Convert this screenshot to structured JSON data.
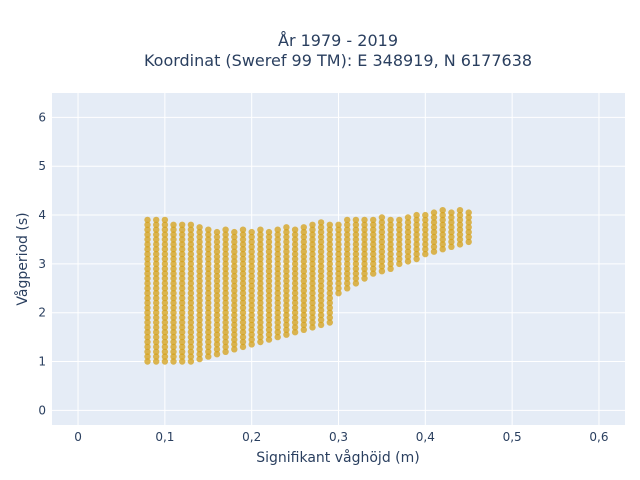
{
  "chart_data": {
    "type": "scatter",
    "title_line1": "År 1979 - 2019",
    "title_line2": "Koordinat (Sweref 99 TM): E 348919, N 6177638",
    "xlabel": "Signifikant våghöjd (m)",
    "ylabel": "Vågperiod (s)",
    "xlim": [
      -0.03,
      0.63
    ],
    "ylim": [
      -0.3,
      6.5
    ],
    "x_ticks": [
      0,
      0.1,
      0.2,
      0.3,
      0.4,
      0.5,
      0.6
    ],
    "x_tick_labels": [
      "0",
      "0,1",
      "0,2",
      "0,3",
      "0,4",
      "0,5",
      "0,6"
    ],
    "y_ticks": [
      0,
      1,
      2,
      3,
      4,
      5,
      6
    ],
    "y_tick_labels": [
      "0",
      "1",
      "2",
      "3",
      "4",
      "5",
      "6"
    ],
    "grid": true,
    "background_color": "#e5ecf6",
    "marker_color": "#d4a017",
    "series": [
      {
        "columns": [
          {
            "x": 0.08,
            "ymin": 1.0,
            "ymax": 3.92
          },
          {
            "x": 0.09,
            "ymin": 1.0,
            "ymax": 3.9
          },
          {
            "x": 0.1,
            "ymin": 1.0,
            "ymax": 3.9
          },
          {
            "x": 0.11,
            "ymin": 1.0,
            "ymax": 3.88
          },
          {
            "x": 0.12,
            "ymin": 1.0,
            "ymax": 3.85
          },
          {
            "x": 0.13,
            "ymin": 1.0,
            "ymax": 3.8
          },
          {
            "x": 0.14,
            "ymin": 1.05,
            "ymax": 3.75
          },
          {
            "x": 0.15,
            "ymin": 1.1,
            "ymax": 3.75
          },
          {
            "x": 0.16,
            "ymin": 1.15,
            "ymax": 3.72
          },
          {
            "x": 0.17,
            "ymin": 1.2,
            "ymax": 3.72
          },
          {
            "x": 0.18,
            "ymin": 1.25,
            "ymax": 3.7
          },
          {
            "x": 0.19,
            "ymin": 1.3,
            "ymax": 3.7
          },
          {
            "x": 0.2,
            "ymin": 1.35,
            "ymax": 3.7
          },
          {
            "x": 0.21,
            "ymin": 1.4,
            "ymax": 3.7
          },
          {
            "x": 0.22,
            "ymin": 1.45,
            "ymax": 3.72
          },
          {
            "x": 0.23,
            "ymin": 1.5,
            "ymax": 3.75
          },
          {
            "x": 0.24,
            "ymin": 1.55,
            "ymax": 3.75
          },
          {
            "x": 0.25,
            "ymin": 1.6,
            "ymax": 3.78
          },
          {
            "x": 0.26,
            "ymin": 1.65,
            "ymax": 3.8
          },
          {
            "x": 0.27,
            "ymin": 1.7,
            "ymax": 3.82
          },
          {
            "x": 0.28,
            "ymin": 1.75,
            "ymax": 3.85
          },
          {
            "x": 0.29,
            "ymin": 1.8,
            "ymax": 3.85
          },
          {
            "x": 0.3,
            "ymin": 2.4,
            "ymax": 3.88
          },
          {
            "x": 0.31,
            "ymin": 2.5,
            "ymax": 3.9
          },
          {
            "x": 0.32,
            "ymin": 2.6,
            "ymax": 3.9
          },
          {
            "x": 0.33,
            "ymin": 2.7,
            "ymax": 3.92
          },
          {
            "x": 0.34,
            "ymin": 2.8,
            "ymax": 3.92
          },
          {
            "x": 0.35,
            "ymin": 2.85,
            "ymax": 3.95
          },
          {
            "x": 0.36,
            "ymin": 2.9,
            "ymax": 3.95
          },
          {
            "x": 0.37,
            "ymin": 3.0,
            "ymax": 3.98
          },
          {
            "x": 0.38,
            "ymin": 3.05,
            "ymax": 4.0
          },
          {
            "x": 0.39,
            "ymin": 3.1,
            "ymax": 4.0
          },
          {
            "x": 0.4,
            "ymin": 3.2,
            "ymax": 4.05
          },
          {
            "x": 0.41,
            "ymin": 3.25,
            "ymax": 4.05
          },
          {
            "x": 0.42,
            "ymin": 3.3,
            "ymax": 4.1
          },
          {
            "x": 0.43,
            "ymin": 3.35,
            "ymax": 4.1
          },
          {
            "x": 0.44,
            "ymin": 3.4,
            "ymax": 4.1
          },
          {
            "x": 0.45,
            "ymin": 3.45,
            "ymax": 4.1
          }
        ]
      }
    ]
  }
}
